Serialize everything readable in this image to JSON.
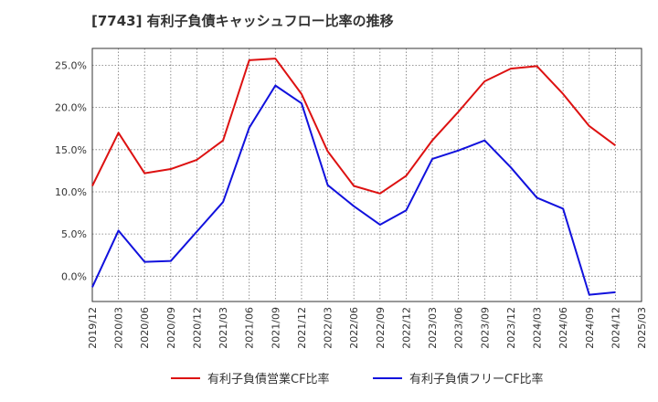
{
  "chart_data": {
    "type": "line",
    "title": "[7743]  有利子負債キャッシュフロー比率の推移",
    "xlabel": "",
    "ylabel": "",
    "x": [
      "2019/12",
      "2020/03",
      "2020/06",
      "2020/09",
      "2020/12",
      "2021/03",
      "2021/06",
      "2021/09",
      "2021/12",
      "2022/03",
      "2022/06",
      "2022/09",
      "2022/12",
      "2023/03",
      "2023/06",
      "2023/09",
      "2023/12",
      "2024/03",
      "2024/06",
      "2024/09",
      "2024/12"
    ],
    "x_ticks": [
      "2019/12",
      "2020/03",
      "2020/06",
      "2020/09",
      "2020/12",
      "2021/03",
      "2021/06",
      "2021/09",
      "2021/12",
      "2022/03",
      "2022/06",
      "2022/09",
      "2022/12",
      "2023/03",
      "2023/06",
      "2023/09",
      "2023/12",
      "2024/03",
      "2024/06",
      "2024/09",
      "2024/12",
      "2025/03"
    ],
    "y_ticks": [
      0,
      5,
      10,
      15,
      20,
      25
    ],
    "y_tick_labels": [
      "0.0%",
      "5.0%",
      "10.0%",
      "15.0%",
      "20.0%",
      "25.0%"
    ],
    "ylim": [
      -3,
      27
    ],
    "grid": true,
    "legend_position": "bottom",
    "series": [
      {
        "name": "有利子負債営業CF比率",
        "color": "#dd1111",
        "values": [
          10.7,
          17.0,
          12.2,
          12.7,
          13.8,
          16.1,
          25.6,
          25.8,
          21.6,
          14.8,
          10.7,
          9.8,
          11.9,
          16.1,
          19.5,
          23.1,
          24.6,
          24.9,
          21.6,
          17.8,
          15.5
        ]
      },
      {
        "name": "有利子負債フリーCF比率",
        "color": "#1111dd",
        "values": [
          -1.3,
          5.4,
          1.7,
          1.8,
          5.3,
          8.8,
          17.6,
          22.6,
          20.5,
          10.8,
          8.3,
          6.1,
          7.8,
          13.9,
          14.9,
          16.1,
          12.9,
          9.3,
          8.0,
          -2.2,
          -1.9
        ]
      }
    ]
  }
}
